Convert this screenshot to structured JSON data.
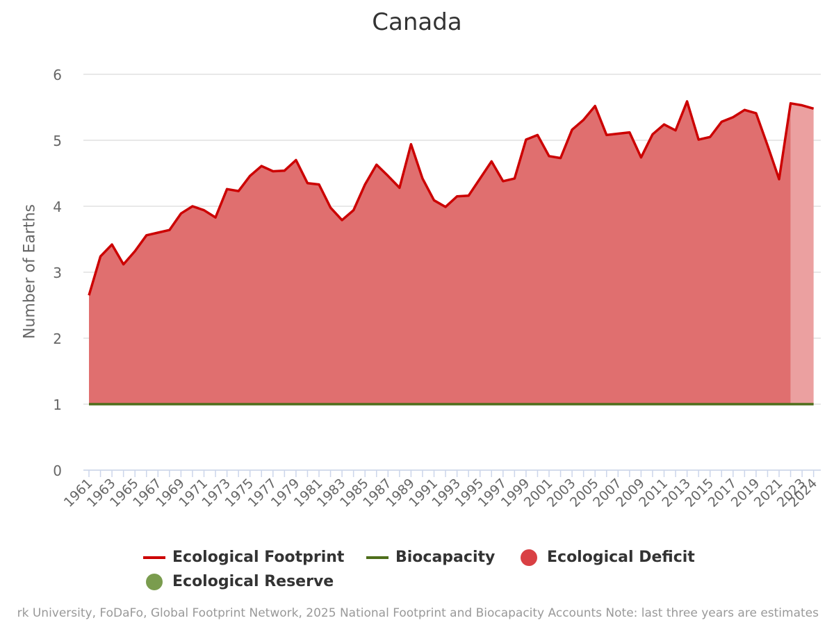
{
  "chart_data": {
    "type": "area",
    "title": "Canada",
    "ylabel": "Number of Earths",
    "xlabel": "",
    "ylim": [
      0,
      6
    ],
    "yticks": [
      "0",
      "1",
      "2",
      "3",
      "4",
      "5",
      "6"
    ],
    "x": [
      1961,
      1962,
      1963,
      1964,
      1965,
      1966,
      1967,
      1968,
      1969,
      1970,
      1971,
      1972,
      1973,
      1974,
      1975,
      1976,
      1977,
      1978,
      1979,
      1980,
      1981,
      1982,
      1983,
      1984,
      1985,
      1986,
      1987,
      1988,
      1989,
      1990,
      1991,
      1992,
      1993,
      1994,
      1995,
      1996,
      1997,
      1998,
      1999,
      2000,
      2001,
      2002,
      2003,
      2004,
      2005,
      2006,
      2007,
      2008,
      2009,
      2010,
      2011,
      2012,
      2013,
      2014,
      2015,
      2016,
      2017,
      2018,
      2019,
      2020,
      2021,
      2022,
      2023,
      2024
    ],
    "xtick_labels": [
      "1961",
      "1963",
      "1965",
      "1967",
      "1969",
      "1971",
      "1973",
      "1975",
      "1977",
      "1979",
      "1981",
      "1983",
      "1985",
      "1987",
      "1989",
      "1991",
      "1993",
      "1995",
      "1997",
      "1999",
      "2001",
      "2003",
      "2005",
      "2007",
      "2009",
      "2011",
      "2013",
      "2015",
      "2017",
      "2019",
      "2021",
      "2023",
      "2024"
    ],
    "estimate_from": 2022,
    "series": [
      {
        "name": "Ecological Footprint",
        "color": "#cc0000",
        "values": [
          2.65,
          3.24,
          3.42,
          3.12,
          3.32,
          3.56,
          3.6,
          3.64,
          3.89,
          4.0,
          3.94,
          3.83,
          4.26,
          4.23,
          4.46,
          4.61,
          4.53,
          4.54,
          4.7,
          4.35,
          4.33,
          3.98,
          3.79,
          3.94,
          4.33,
          4.63,
          4.46,
          4.28,
          4.94,
          4.42,
          4.09,
          3.99,
          4.15,
          4.16,
          4.42,
          4.68,
          4.38,
          4.42,
          5.01,
          5.08,
          4.76,
          4.73,
          5.16,
          5.31,
          5.52,
          5.08,
          5.1,
          5.12,
          4.74,
          5.09,
          5.24,
          5.15,
          5.59,
          5.01,
          5.05,
          5.28,
          5.35,
          5.46,
          5.41,
          4.92,
          4.41,
          5.56,
          5.53,
          5.48
        ]
      },
      {
        "name": "Biocapacity",
        "color": "#4e6e1b",
        "values": [
          1,
          1,
          1,
          1,
          1,
          1,
          1,
          1,
          1,
          1,
          1,
          1,
          1,
          1,
          1,
          1,
          1,
          1,
          1,
          1,
          1,
          1,
          1,
          1,
          1,
          1,
          1,
          1,
          1,
          1,
          1,
          1,
          1,
          1,
          1,
          1,
          1,
          1,
          1,
          1,
          1,
          1,
          1,
          1,
          1,
          1,
          1,
          1,
          1,
          1,
          1,
          1,
          1,
          1,
          1,
          1,
          1,
          1,
          1,
          1,
          1,
          1,
          1,
          1
        ]
      }
    ],
    "legend": [
      {
        "name": "Ecological Footprint",
        "kind": "line",
        "color": "#cc0000"
      },
      {
        "name": "Biocapacity",
        "kind": "line",
        "color": "#4e6e1b"
      },
      {
        "name": "Ecological Deficit",
        "kind": "dot",
        "color": "#d94044"
      },
      {
        "name": "Ecological Reserve",
        "kind": "dot",
        "color": "#7a9c4e"
      }
    ],
    "legend_position": "bottom-center",
    "grid": true,
    "deficit_color": "#e06f6f",
    "deficit_estimate_color": "#eba0a0"
  },
  "footer": "rk University, FoDaFo, Global Footprint Network, 2025 National Footprint and Biocapacity Accounts Note: last three years are estimates"
}
